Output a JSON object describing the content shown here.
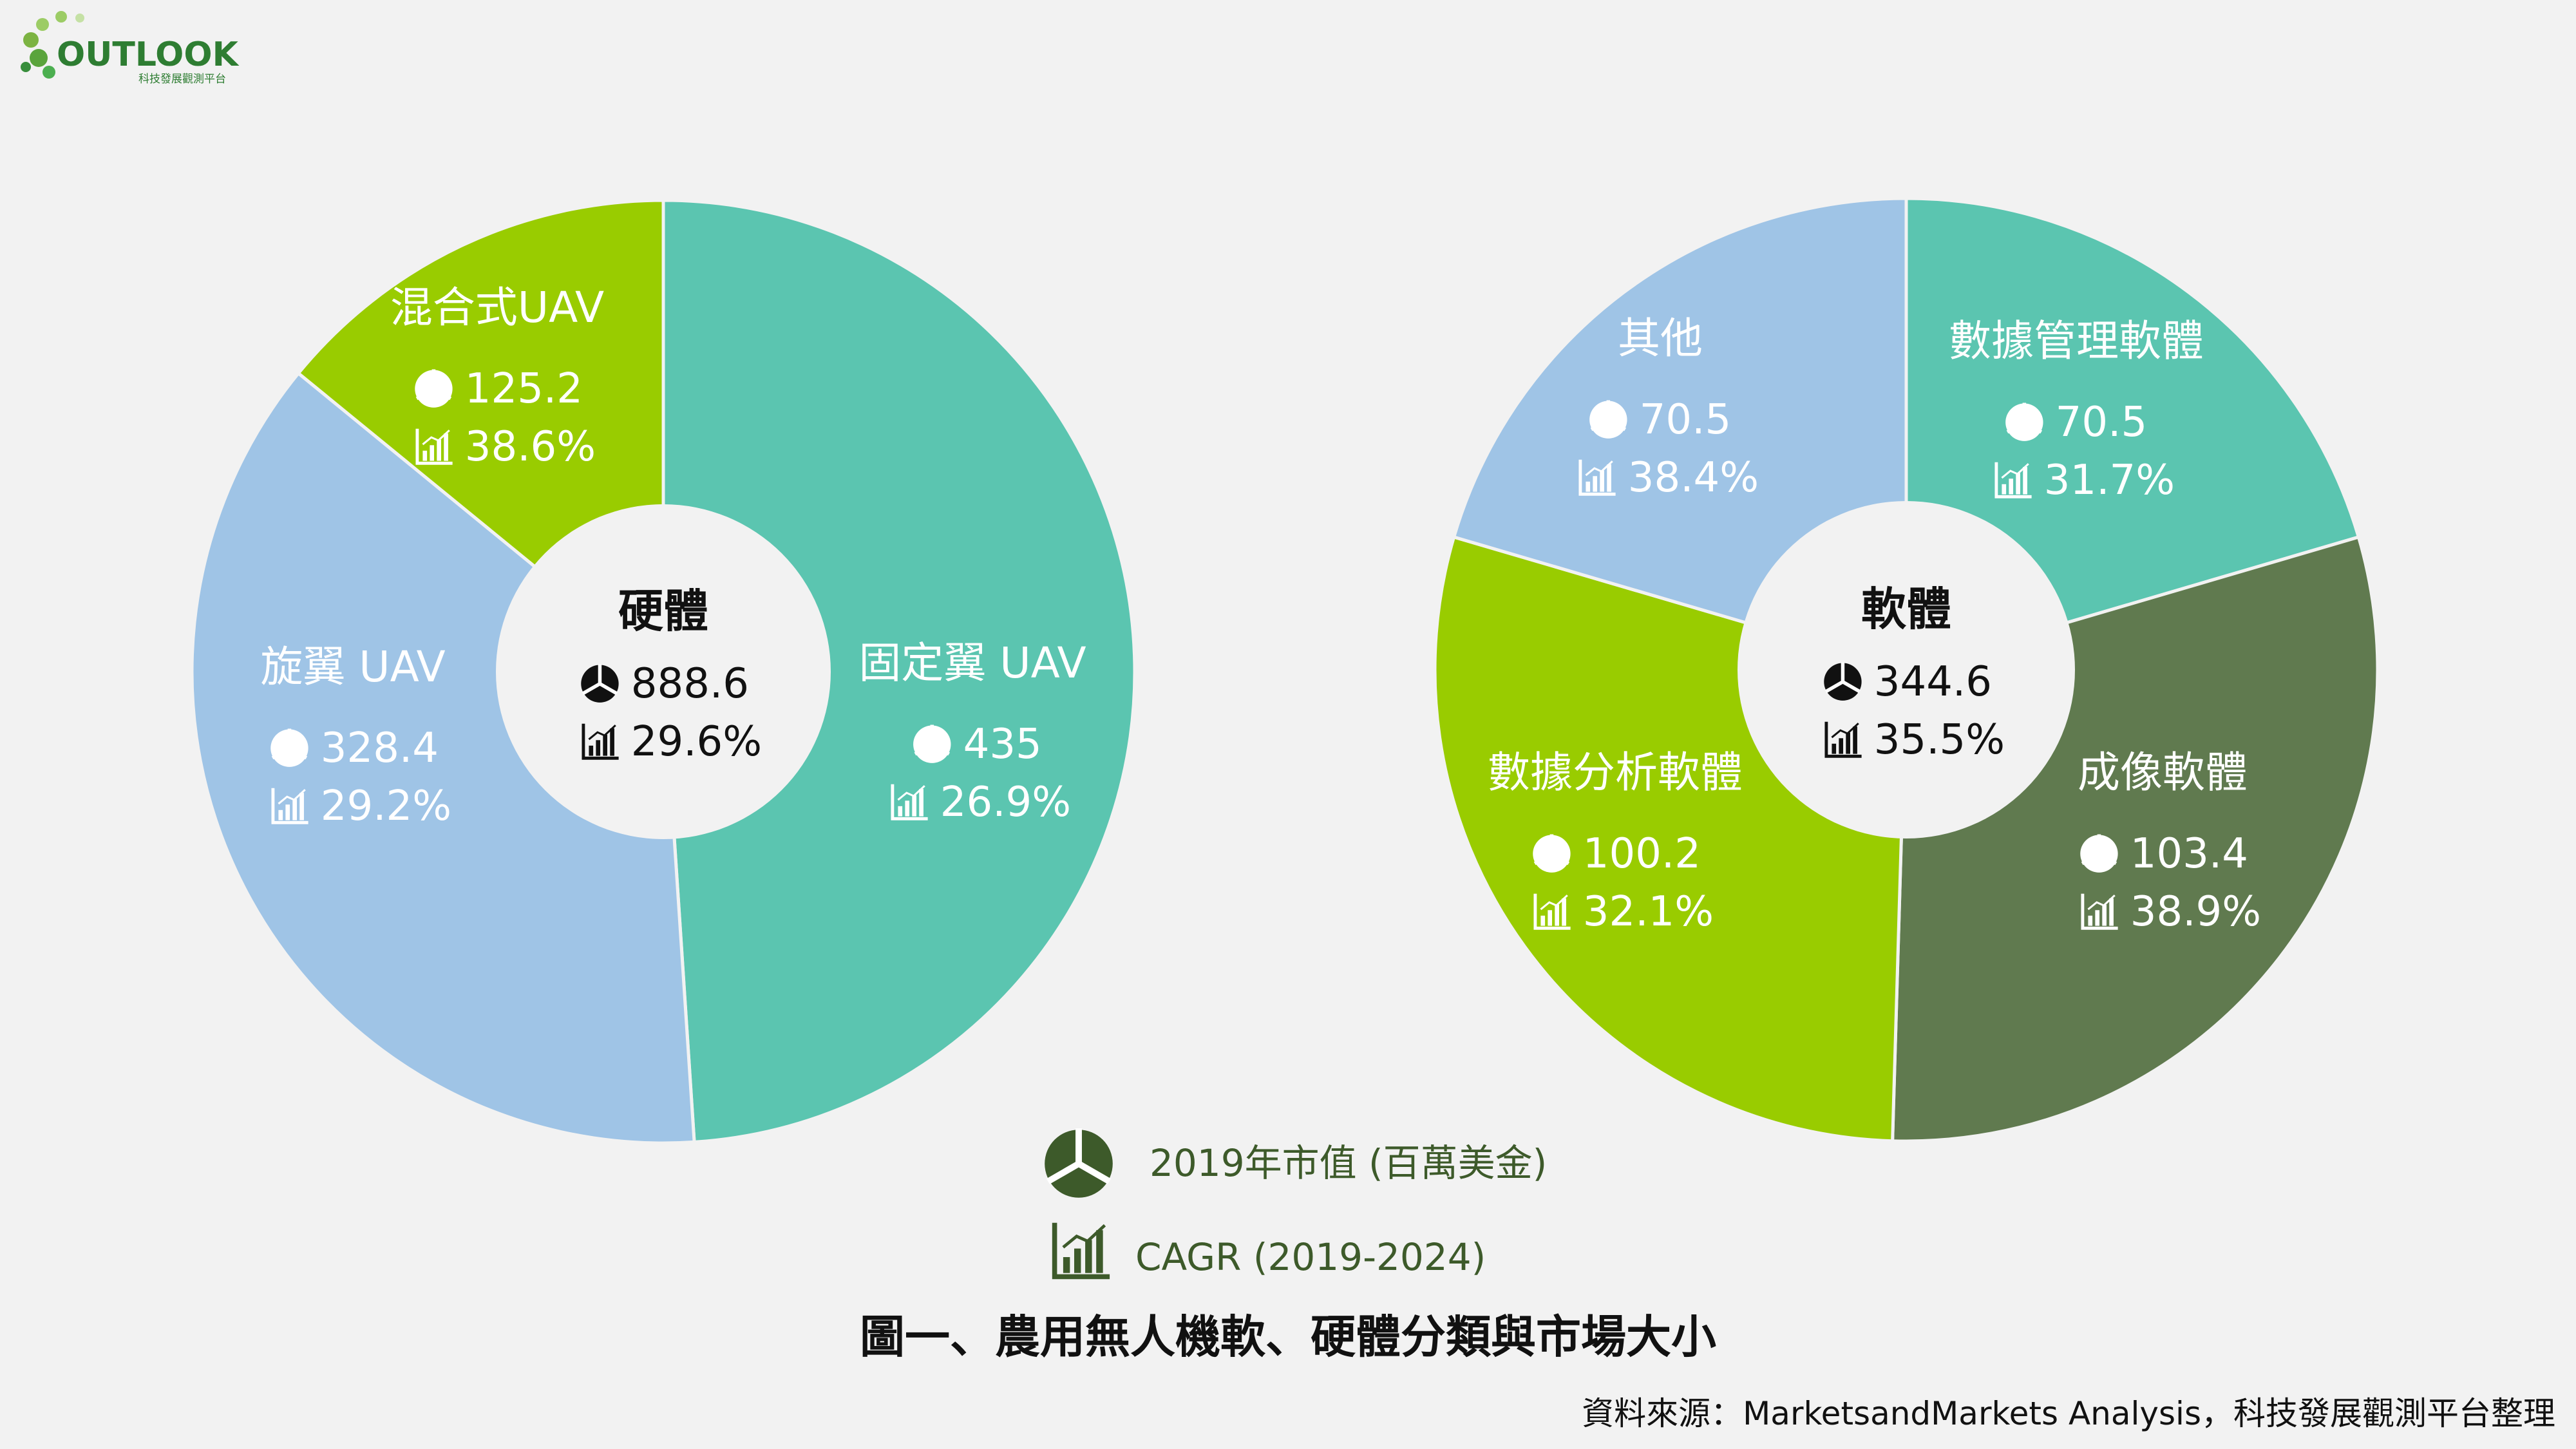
{
  "logo": {
    "name": "OUTLOOK",
    "subtitle": "科技發展觀測平台"
  },
  "chart_data": [
    {
      "type": "pie",
      "variant": "donut",
      "center_label": "硬體",
      "center_value": "888.6",
      "center_cagr": "29.6%",
      "slices": [
        {
          "label": "固定翼 UAV",
          "value": 435,
          "value_text": "435",
          "cagr": "26.9%",
          "color": "#5bc5b0"
        },
        {
          "label": "旋翼 UAV",
          "value": 328.4,
          "value_text": "328.4",
          "cagr": "29.2%",
          "color": "#9fc4e6"
        },
        {
          "label": "混合式UAV",
          "value": 125.2,
          "value_text": "125.2",
          "cagr": "38.6%",
          "color": "#99cc00"
        }
      ]
    },
    {
      "type": "pie",
      "variant": "donut",
      "center_label": "軟體",
      "center_value": "344.6",
      "center_cagr": "35.5%",
      "slices": [
        {
          "label": "數據管理軟體",
          "value": 70.5,
          "value_text": "70.5",
          "cagr": "31.7%",
          "color": "#5bc5b0"
        },
        {
          "label": "成像軟體",
          "value": 103.4,
          "value_text": "103.4",
          "cagr": "38.9%",
          "color": "#607a4f"
        },
        {
          "label": "數據分析軟體",
          "value": 100.2,
          "value_text": "100.2",
          "cagr": "32.1%",
          "color": "#99cc00"
        },
        {
          "label": "其他",
          "value": 70.5,
          "value_text": "70.5",
          "cagr": "38.4%",
          "color": "#9fc4e6"
        }
      ]
    }
  ],
  "legend": {
    "value_label": "2019年市值 (百萬美金)",
    "cagr_label": "CAGR (2019-2024)",
    "icon_color": "#3d5a2a",
    "text_color": "#3d5a2a"
  },
  "caption": "圖一、農用無人機軟、硬體分類與市場大小",
  "source": "資料來源：MarketsandMarkets Analysis，科技發展觀測平台整理"
}
